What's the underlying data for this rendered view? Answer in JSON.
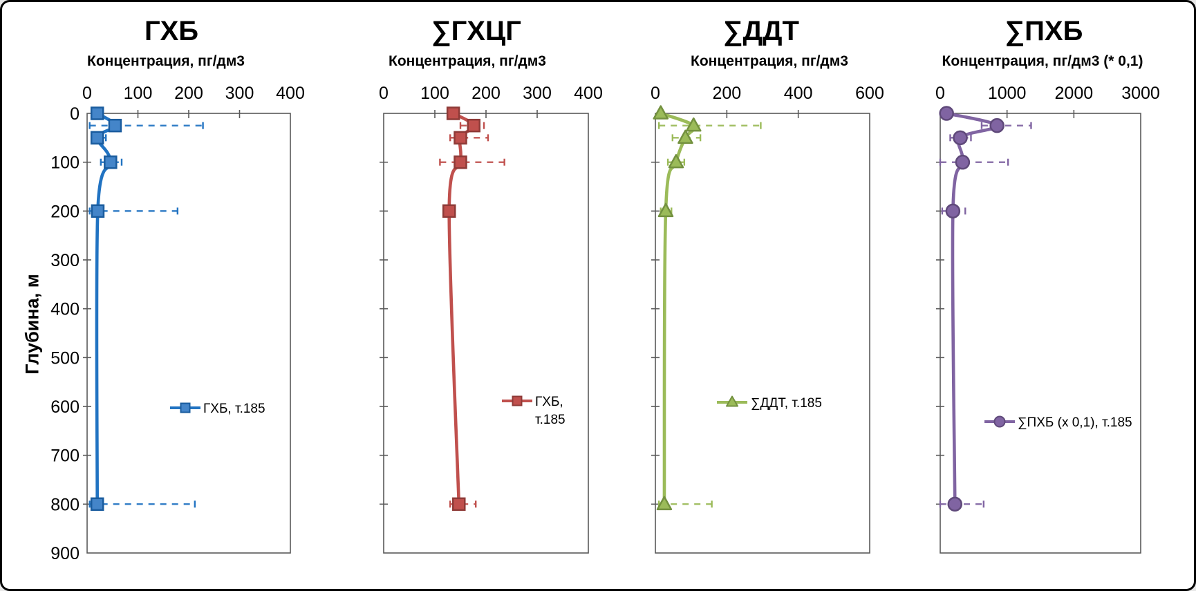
{
  "figure": {
    "background": "#ffffff",
    "frame_color": "#000000",
    "y_axis": {
      "title": "Глубина, м",
      "ticks": [
        0,
        100,
        200,
        300,
        400,
        500,
        600,
        700,
        800,
        900
      ],
      "range": [
        0,
        900
      ]
    }
  },
  "chart_data": [
    {
      "type": "line",
      "title": "ГХБ",
      "subtitle": "Концентрация, пг/дм3",
      "xlim": [
        0,
        400
      ],
      "x_ticks": [
        0,
        100,
        200,
        300,
        400
      ],
      "ylim": [
        0,
        900
      ],
      "show_y_tick_labels": true,
      "marker": "square",
      "colors": {
        "line": "#2173C2",
        "marker_fill": "#4485C9",
        "marker_edge": "#1A5C9E",
        "error": "#2173C2"
      },
      "legend": {
        "label": "ГХБ, т.185",
        "lines": [
          "ГХБ, т.185"
        ]
      },
      "series": [
        {
          "name": "ГХБ, т.185",
          "points": [
            {
              "depth_m": 0,
              "value": 20
            },
            {
              "depth_m": 25,
              "value": 55,
              "err_low": 5,
              "err_high": 228
            },
            {
              "depth_m": 50,
              "value": 20,
              "err_low": 10,
              "err_high": 37
            },
            {
              "depth_m": 100,
              "value": 46,
              "err_low": 27,
              "err_high": 68
            },
            {
              "depth_m": 200,
              "value": 21,
              "err_low": 5,
              "err_high": 178
            },
            {
              "depth_m": 800,
              "value": 20,
              "err_low": 5,
              "err_high": 212
            }
          ]
        }
      ]
    },
    {
      "type": "line",
      "title": "∑ГХЦГ",
      "subtitle": "Концентрация, пг/дм3",
      "xlim": [
        0,
        400
      ],
      "x_ticks": [
        0,
        100,
        200,
        300,
        400
      ],
      "ylim": [
        0,
        900
      ],
      "show_y_tick_labels": false,
      "marker": "square",
      "colors": {
        "line": "#C0504D",
        "marker_fill": "#C0504D",
        "marker_edge": "#8E3A37",
        "error": "#C0504D"
      },
      "legend": {
        "label": "ГХБ, т.185",
        "lines": [
          "ГХБ,",
          "т.185"
        ]
      },
      "series": [
        {
          "name": "ГХБ, т.185",
          "points": [
            {
              "depth_m": 0,
              "value": 136
            },
            {
              "depth_m": 25,
              "value": 176,
              "err_low": 150,
              "err_high": 196
            },
            {
              "depth_m": 50,
              "value": 150,
              "err_low": 130,
              "err_high": 204
            },
            {
              "depth_m": 100,
              "value": 150,
              "err_low": 110,
              "err_high": 236
            },
            {
              "depth_m": 200,
              "value": 128
            },
            {
              "depth_m": 800,
              "value": 147,
              "err_low": 130,
              "err_high": 180
            }
          ]
        }
      ]
    },
    {
      "type": "line",
      "title": "∑ДДТ",
      "subtitle": "Концентрация, пг/дм3",
      "xlim": [
        0,
        600
      ],
      "x_ticks": [
        0,
        200,
        400,
        600
      ],
      "ylim": [
        0,
        900
      ],
      "show_y_tick_labels": false,
      "marker": "triangle",
      "colors": {
        "line": "#9BBB59",
        "marker_fill": "#9BBB59",
        "marker_edge": "#73913F",
        "error": "#9BBB59"
      },
      "legend": {
        "label": "∑ДДТ, т.185",
        "lines": [
          "∑ДДТ, т.185"
        ]
      },
      "series": [
        {
          "name": "∑ДДТ, т.185",
          "points": [
            {
              "depth_m": 0,
              "value": 15
            },
            {
              "depth_m": 25,
              "value": 107,
              "err_low": 10,
              "err_high": 295
            },
            {
              "depth_m": 50,
              "value": 84,
              "err_low": 48,
              "err_high": 126
            },
            {
              "depth_m": 100,
              "value": 58,
              "err_low": 35,
              "err_high": 81
            },
            {
              "depth_m": 200,
              "value": 29,
              "err_low": 15,
              "err_high": 45
            },
            {
              "depth_m": 800,
              "value": 25,
              "err_low": 10,
              "err_high": 158
            }
          ]
        }
      ]
    },
    {
      "type": "line",
      "title": "∑ПХБ",
      "subtitle": "Концентрация, пг/дм3 (* 0,1)",
      "xlim": [
        0,
        3000
      ],
      "x_ticks": [
        0,
        1000,
        2000,
        3000
      ],
      "ylim": [
        0,
        900
      ],
      "show_y_tick_labels": false,
      "marker": "circle",
      "colors": {
        "line": "#8064A2",
        "marker_fill": "#8064A2",
        "marker_edge": "#5F497A",
        "error": "#8064A2"
      },
      "legend": {
        "label": "∑ПХБ (х 0,1), т.185",
        "lines": [
          "∑ПХБ (х 0,1), т.185"
        ]
      },
      "series": [
        {
          "name": "∑ПХБ (х 0,1), т.185",
          "points": [
            {
              "depth_m": 0,
              "value": 95
            },
            {
              "depth_m": 25,
              "value": 850,
              "err_low": 620,
              "err_high": 1360
            },
            {
              "depth_m": 50,
              "value": 300,
              "err_low": 150,
              "err_high": 460
            },
            {
              "depth_m": 100,
              "value": 335,
              "err_low": 0,
              "err_high": 1015
            },
            {
              "depth_m": 200,
              "value": 190,
              "err_low": 30,
              "err_high": 375
            },
            {
              "depth_m": 800,
              "value": 220,
              "err_low": 0,
              "err_high": 650
            }
          ]
        }
      ]
    }
  ]
}
